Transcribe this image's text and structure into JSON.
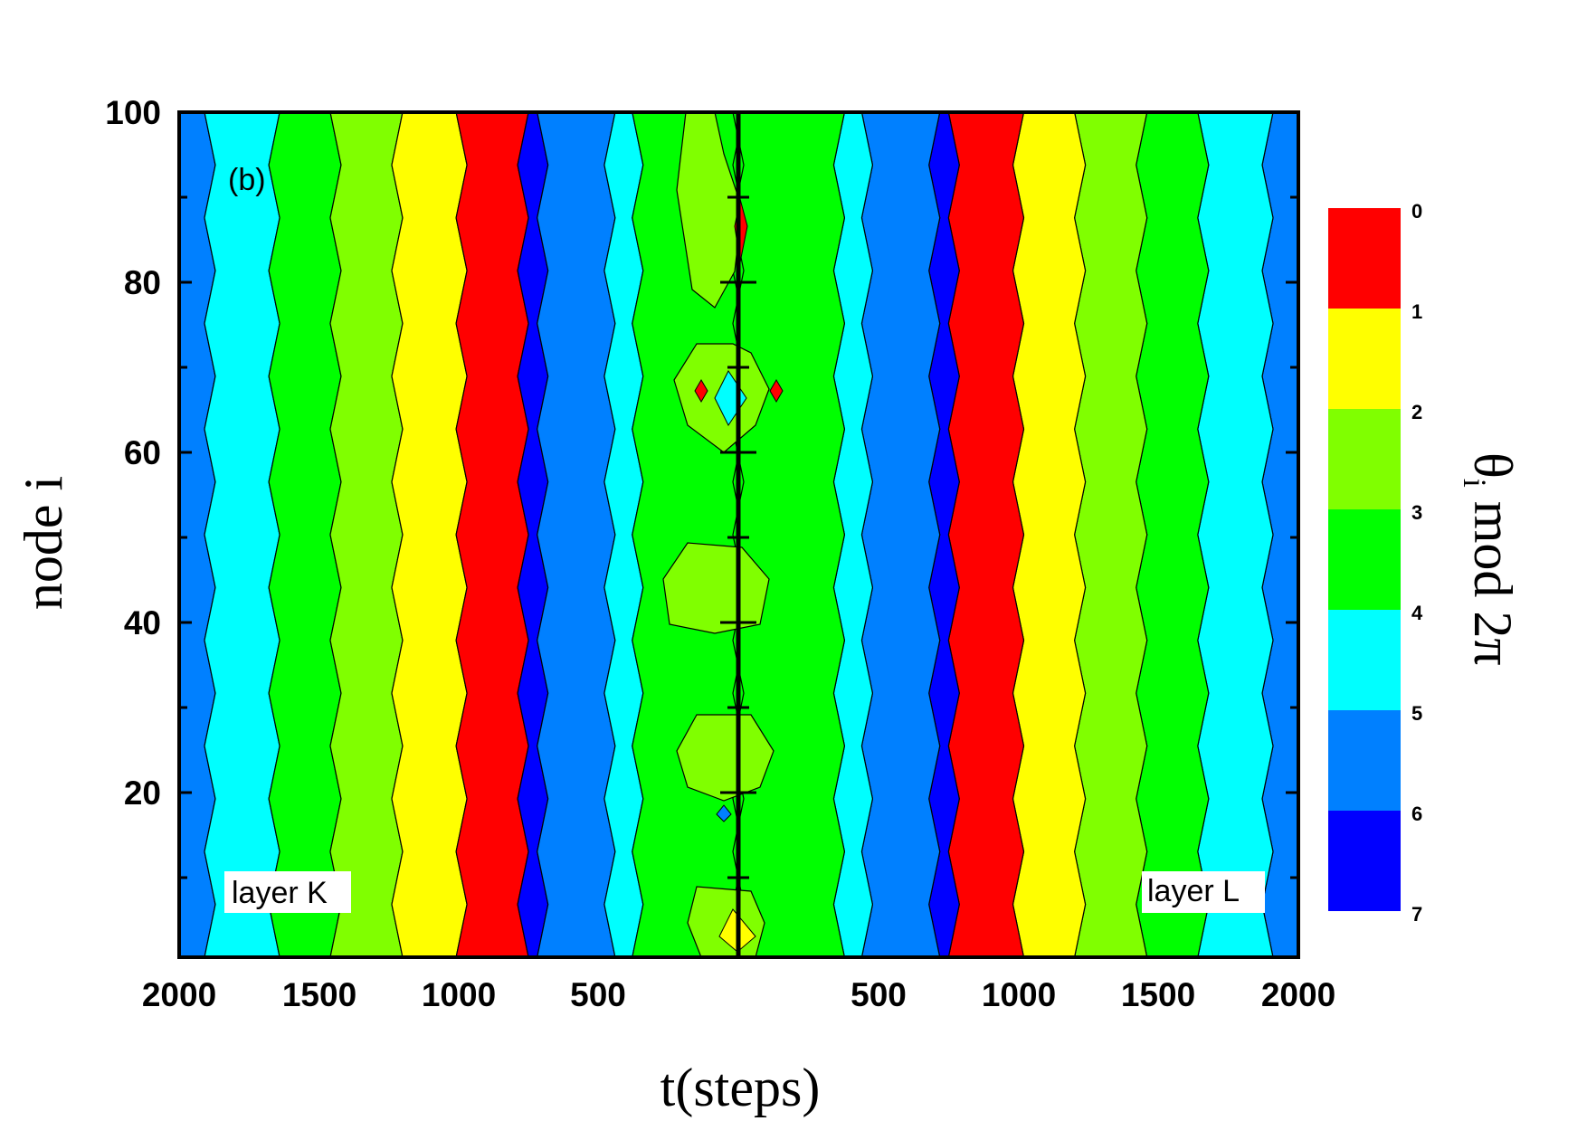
{
  "chart_data": {
    "type": "heatmap",
    "panel_label": "(b)",
    "xlabel": "t(steps)",
    "ylabel": "node i",
    "colorbar_label": "θ",
    "colorbar_label_sub": "i",
    "colorbar_label_rest": " mod 2π",
    "x_ticks_left": [
      "2000",
      "1500",
      "1000",
      "500"
    ],
    "x_ticks_right": [
      "500",
      "1000",
      "1500",
      "2000"
    ],
    "y_ticks": [
      "100",
      "80",
      "60",
      "40",
      "20"
    ],
    "y_range": [
      1,
      100
    ],
    "x_range_each_layer": [
      0,
      2000
    ],
    "layers": [
      "layer K",
      "layer L"
    ],
    "colorbar": {
      "ticks": [
        "0",
        "1",
        "2",
        "3",
        "4",
        "5",
        "6",
        "7"
      ],
      "levels": [
        {
          "range": [
            0,
            1
          ],
          "color": "#ff0000"
        },
        {
          "range": [
            1,
            2
          ],
          "color": "#ffff00"
        },
        {
          "range": [
            2,
            3
          ],
          "color": "#80ff00"
        },
        {
          "range": [
            3,
            4
          ],
          "color": "#00ff00"
        },
        {
          "range": [
            4,
            5
          ],
          "color": "#00ffff"
        },
        {
          "range": [
            5,
            6
          ],
          "color": "#0080ff"
        },
        {
          "range": [
            6,
            7
          ],
          "color": "#0000ff"
        }
      ]
    },
    "bands": [
      {
        "t_left_from": 2000,
        "t_left_to": 1890,
        "t_right_from": 1890,
        "t_right_to": 2000,
        "level": 5
      },
      {
        "t_left_from": 1890,
        "t_left_to": 1660,
        "t_right_from": 1660,
        "t_right_to": 1890,
        "level": 4
      },
      {
        "t_left_from": 1660,
        "t_left_to": 1440,
        "t_right_from": 1440,
        "t_right_to": 1660,
        "level": 3
      },
      {
        "t_left_from": 1440,
        "t_left_to": 1220,
        "t_right_from": 1220,
        "t_right_to": 1440,
        "level": 2
      },
      {
        "t_left_from": 1220,
        "t_left_to": 990,
        "t_right_from": 1000,
        "t_right_to": 1220,
        "level": 1
      },
      {
        "t_left_from": 990,
        "t_left_to": 770,
        "t_right_from": 770,
        "t_right_to": 1000,
        "level": 0
      },
      {
        "t_left_from": 770,
        "t_left_to": 700,
        "t_right_from": 700,
        "t_right_to": 770,
        "level": 6
      },
      {
        "t_left_from": 700,
        "t_left_to": 460,
        "t_right_from": 460,
        "t_right_to": 700,
        "level": 5
      },
      {
        "t_left_from": 460,
        "t_left_to": 360,
        "t_right_from": 360,
        "t_right_to": 460,
        "level": 4
      },
      {
        "t_left_from": 360,
        "t_left_to": 0,
        "t_right_from": 0,
        "t_right_to": 360,
        "level": 3
      }
    ]
  }
}
